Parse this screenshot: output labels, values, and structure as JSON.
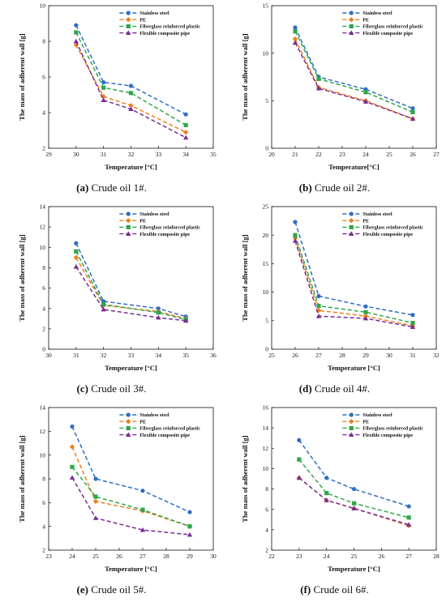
{
  "colors": {
    "Stainless steel": "#2f6ec4",
    "PE": "#f07f1b",
    "Fiberglass reinforced plastic": "#2fa84a",
    "Flexible composite pipe": "#7a2d94"
  },
  "markers": {
    "Stainless steel": "circle",
    "PE": "diamond",
    "Fiberglass reinforced plastic": "square",
    "Flexible composite pipe": "triangle"
  },
  "legend_position": "top-right",
  "chart_data": [
    {
      "type": "line",
      "panel_label": "(a)",
      "caption": "Crude oil 1#.",
      "xlabel": "Temperature [°C]",
      "ylabel": "The mass of adherent wall [g]",
      "xlim": [
        29,
        35
      ],
      "xticks": [
        29,
        30,
        31,
        32,
        33,
        34,
        35
      ],
      "ylim": [
        2,
        10
      ],
      "yticks": [
        2,
        4,
        6,
        8,
        10
      ],
      "x": [
        30,
        31,
        32,
        34
      ],
      "series": [
        {
          "name": "Stainless steel",
          "values": [
            8.9,
            5.7,
            5.5,
            3.9
          ]
        },
        {
          "name": "PE",
          "values": [
            7.8,
            4.9,
            4.4,
            2.9
          ]
        },
        {
          "name": "Fiberglass reinforced plastic",
          "values": [
            8.5,
            5.4,
            5.1,
            3.3
          ]
        },
        {
          "name": "Flexible composite pipe",
          "values": [
            8.0,
            4.7,
            4.2,
            2.6
          ]
        }
      ]
    },
    {
      "type": "line",
      "panel_label": "(b)",
      "caption": "Crude oil 2#.",
      "xlabel": "Temperature[°C]",
      "ylabel": "The mass of adherent wall [g]",
      "xlim": [
        20,
        27
      ],
      "xticks": [
        20,
        21,
        22,
        23,
        24,
        25,
        26,
        27
      ],
      "ylim": [
        0,
        15
      ],
      "yticks": [
        0,
        5,
        10,
        15
      ],
      "x": [
        21,
        22,
        24,
        26
      ],
      "series": [
        {
          "name": "Stainless steel",
          "values": [
            12.7,
            7.5,
            6.2,
            4.2
          ]
        },
        {
          "name": "PE",
          "values": [
            11.5,
            6.4,
            5.0,
            3.1
          ]
        },
        {
          "name": "Fiberglass reinforced plastic",
          "values": [
            12.3,
            7.3,
            5.9,
            3.8
          ]
        },
        {
          "name": "Flexible composite pipe",
          "values": [
            11.1,
            6.3,
            4.9,
            3.1
          ]
        }
      ]
    },
    {
      "type": "line",
      "panel_label": "(c)",
      "caption": "Crude oil 3#.",
      "xlabel": "Temperature [°C]",
      "ylabel": "The mass of adherent wall [g]",
      "xlim": [
        30,
        36
      ],
      "xticks": [
        30,
        31,
        32,
        33,
        34,
        35,
        36
      ],
      "ylim": [
        0,
        14
      ],
      "yticks": [
        0,
        2,
        4,
        6,
        8,
        10,
        12,
        14
      ],
      "x": [
        31,
        32,
        34,
        35
      ],
      "series": [
        {
          "name": "Stainless steel",
          "values": [
            10.4,
            4.7,
            4.0,
            3.2
          ]
        },
        {
          "name": "PE",
          "values": [
            9.0,
            4.3,
            3.7,
            3.0
          ]
        },
        {
          "name": "Fiberglass reinforced plastic",
          "values": [
            9.6,
            4.4,
            3.6,
            2.9
          ]
        },
        {
          "name": "Flexible composite pipe",
          "values": [
            8.1,
            3.9,
            3.1,
            2.8
          ]
        }
      ]
    },
    {
      "type": "line",
      "panel_label": "(d)",
      "caption": "Crude oil 4#.",
      "xlabel": "Temperature [°C]",
      "ylabel": "The mass of adherent wall [g]",
      "xlim": [
        25,
        32
      ],
      "xticks": [
        25,
        26,
        27,
        28,
        29,
        30,
        31,
        32
      ],
      "ylim": [
        0,
        25
      ],
      "yticks": [
        0,
        5,
        10,
        15,
        20,
        25
      ],
      "x": [
        26,
        27,
        29,
        31
      ],
      "series": [
        {
          "name": "Stainless steel",
          "values": [
            22.3,
            9.3,
            7.5,
            6.0
          ]
        },
        {
          "name": "PE",
          "values": [
            19.5,
            6.8,
            5.8,
            4.1
          ]
        },
        {
          "name": "Fiberglass reinforced plastic",
          "values": [
            20.0,
            7.6,
            6.5,
            4.6
          ]
        },
        {
          "name": "Flexible composite pipe",
          "values": [
            19.0,
            5.8,
            5.4,
            3.9
          ]
        }
      ]
    },
    {
      "type": "line",
      "panel_label": "(e)",
      "caption": "Crude oil 5#.",
      "xlabel": "Temperature [°C]",
      "ylabel": "The mass of adherent wall [g]",
      "xlim": [
        23,
        30
      ],
      "xticks": [
        23,
        24,
        25,
        26,
        27,
        28,
        29,
        30
      ],
      "ylim": [
        2,
        14
      ],
      "yticks": [
        2,
        4,
        6,
        8,
        10,
        12,
        14
      ],
      "x": [
        24,
        25,
        27,
        29
      ],
      "series": [
        {
          "name": "Stainless steel",
          "values": [
            12.4,
            8.0,
            7.0,
            5.2
          ]
        },
        {
          "name": "PE",
          "values": [
            10.7,
            6.1,
            5.3,
            4.0
          ]
        },
        {
          "name": "Fiberglass reinforced plastic",
          "values": [
            9.0,
            6.5,
            5.4,
            4.0
          ]
        },
        {
          "name": "Flexible composite pipe",
          "values": [
            8.1,
            4.7,
            3.7,
            3.3
          ]
        }
      ]
    },
    {
      "type": "line",
      "panel_label": "(f)",
      "caption": "Crude oil 6#.",
      "xlabel": "Temperature [°C]",
      "ylabel": "The mass of adherent wall [g]",
      "xlim": [
        22,
        28
      ],
      "xticks": [
        22,
        23,
        24,
        25,
        26,
        27,
        28
      ],
      "ylim": [
        2,
        16
      ],
      "yticks": [
        2,
        4,
        6,
        8,
        10,
        12,
        14,
        16
      ],
      "x": [
        23,
        24,
        25,
        27
      ],
      "series": [
        {
          "name": "Stainless steel",
          "values": [
            12.8,
            9.1,
            8.0,
            6.3
          ]
        },
        {
          "name": "PE",
          "values": [
            9.1,
            6.9,
            6.1,
            4.4
          ]
        },
        {
          "name": "Fiberglass reinforced plastic",
          "values": [
            10.9,
            7.6,
            6.6,
            5.2
          ]
        },
        {
          "name": "Flexible composite pipe",
          "values": [
            9.1,
            6.9,
            6.1,
            4.5
          ]
        }
      ]
    }
  ]
}
